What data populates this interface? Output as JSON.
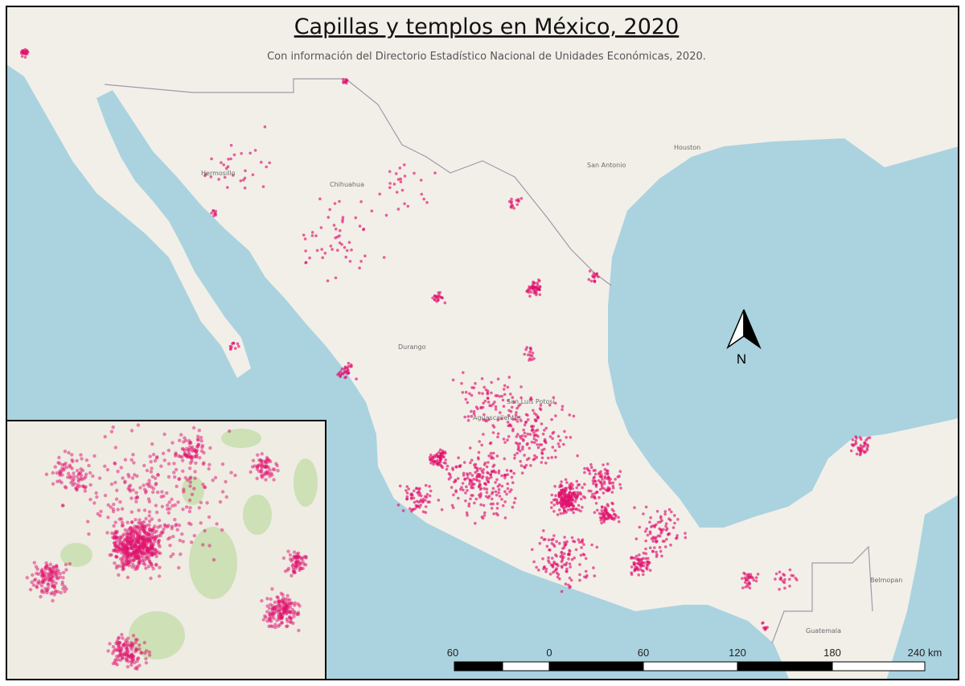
{
  "map": {
    "title": "Capillas y templos en México, 2020",
    "subtitle": "Con información del Directorio Estadístico Nacional de Unidades Económicas, 2020.",
    "north_label": "N",
    "places": [
      "Chihuahua",
      "Hermosillo",
      "Durango",
      "Aguascalientes",
      "San Luis Potosí",
      "San Antonio",
      "Houston",
      "Belmopan",
      "Guatemala"
    ],
    "scale_bar": {
      "labels": [
        "60",
        "0",
        "60",
        "120",
        "180",
        "240 km"
      ]
    }
  }
}
